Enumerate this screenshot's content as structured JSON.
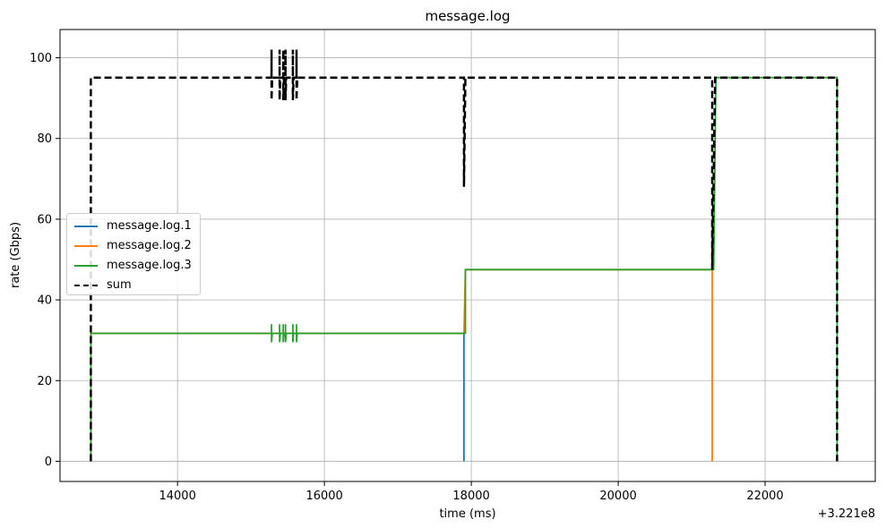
{
  "chart_data": {
    "type": "line",
    "title": "message.log",
    "xlabel": "time (ms)",
    "ylabel": "rate (Gbps)",
    "x_offset_label": "+3.221e8",
    "xlim": [
      12400,
      23500
    ],
    "ylim": [
      -5,
      107
    ],
    "x_ticks": [
      14000,
      16000,
      18000,
      20000,
      22000
    ],
    "x_tick_labels": [
      "14000",
      "16000",
      "18000",
      "20000",
      "22000"
    ],
    "y_ticks": [
      0,
      20,
      40,
      60,
      80,
      100
    ],
    "y_tick_labels": [
      "0",
      "20",
      "40",
      "60",
      "80",
      "100"
    ],
    "grid": true,
    "legend_position": "center-left",
    "series": [
      {
        "name": "message.log.1",
        "color": "#1f77b4",
        "dashed": false,
        "points": [
          [
            12820,
            0
          ],
          [
            12820,
            31.7
          ],
          [
            17900,
            31.7
          ],
          [
            17900,
            0
          ]
        ]
      },
      {
        "name": "message.log.2",
        "color": "#ff7f0e",
        "dashed": false,
        "points": [
          [
            12820,
            0
          ],
          [
            12820,
            31.7
          ],
          [
            17900,
            31.7
          ],
          [
            17920,
            47.5
          ],
          [
            21280,
            47.5
          ],
          [
            21280,
            0
          ]
        ]
      },
      {
        "name": "message.log.3",
        "color": "#2ca02c",
        "dashed": false,
        "points": [
          [
            12820,
            0
          ],
          [
            12820,
            31.7
          ],
          [
            15280,
            31.7
          ],
          [
            15280,
            34
          ],
          [
            15280,
            29.5
          ],
          [
            15290,
            31.7
          ],
          [
            15390,
            31.7
          ],
          [
            15390,
            34
          ],
          [
            15390,
            29.5
          ],
          [
            15400,
            31.7
          ],
          [
            15440,
            31.7
          ],
          [
            15440,
            34
          ],
          [
            15440,
            29.5
          ],
          [
            15450,
            31.7
          ],
          [
            15470,
            31.7
          ],
          [
            15470,
            34
          ],
          [
            15470,
            29.5
          ],
          [
            15480,
            31.7
          ],
          [
            15570,
            31.7
          ],
          [
            15570,
            34
          ],
          [
            15570,
            29.5
          ],
          [
            15580,
            31.7
          ],
          [
            15620,
            31.7
          ],
          [
            15620,
            34
          ],
          [
            15620,
            29.5
          ],
          [
            15630,
            31.7
          ],
          [
            17920,
            31.7
          ],
          [
            17920,
            47.5
          ],
          [
            21300,
            47.5
          ],
          [
            21330,
            95.1
          ],
          [
            22980,
            95.1
          ],
          [
            22980,
            0
          ]
        ]
      },
      {
        "name": "sum",
        "color": "#000000",
        "dashed": true,
        "points": [
          [
            12820,
            0
          ],
          [
            12820,
            95.1
          ],
          [
            15280,
            95.1
          ],
          [
            15280,
            102
          ],
          [
            15280,
            89.5
          ],
          [
            15290,
            95.1
          ],
          [
            15390,
            95.1
          ],
          [
            15390,
            102
          ],
          [
            15390,
            89.5
          ],
          [
            15400,
            95.1
          ],
          [
            15440,
            95.1
          ],
          [
            15440,
            102
          ],
          [
            15440,
            89.5
          ],
          [
            15450,
            95.1
          ],
          [
            15470,
            95.1
          ],
          [
            15470,
            102
          ],
          [
            15470,
            89.5
          ],
          [
            15480,
            95.1
          ],
          [
            15570,
            95.1
          ],
          [
            15570,
            102
          ],
          [
            15570,
            89.5
          ],
          [
            15580,
            95.1
          ],
          [
            15620,
            95.1
          ],
          [
            15620,
            102
          ],
          [
            15620,
            89.5
          ],
          [
            15630,
            95.1
          ],
          [
            17900,
            95.1
          ],
          [
            17900,
            68
          ],
          [
            17920,
            95.1
          ],
          [
            21280,
            95.1
          ],
          [
            21280,
            47.5
          ],
          [
            21320,
            95.1
          ],
          [
            22980,
            95.1
          ],
          [
            22980,
            0
          ]
        ]
      }
    ]
  }
}
